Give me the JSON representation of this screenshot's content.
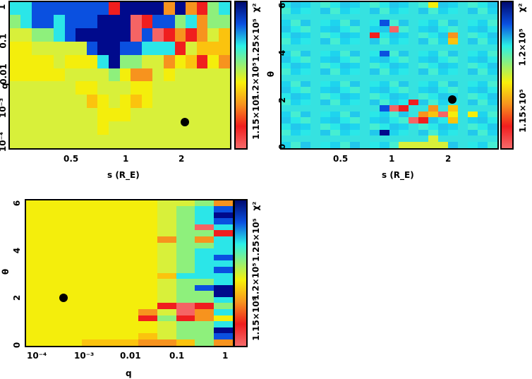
{
  "palette": [
    "#f56464",
    "#f01e1e",
    "#f7931e",
    "#fbc30e",
    "#f4ee0c",
    "#d8f03a",
    "#8ef07c",
    "#2be6e8",
    "#0a50e0",
    "#000a8c"
  ],
  "chart_data": [
    {
      "type": "heatmap",
      "xlabel": "s (R_E)",
      "ylabel": "q",
      "xticks": [
        "0.5",
        "1",
        "2"
      ],
      "yticks": [
        "1",
        "0.1",
        "0.01",
        "10⁻³",
        "10⁻⁴"
      ],
      "colorbar_label": "χ²",
      "colorbar_ticks": [
        "1.15×10⁵",
        "1.2×10⁵",
        "1.25×10⁵"
      ],
      "marker": {
        "s": 2.2,
        "q": 0.0003
      },
      "levels": [
        "77888888819999292167",
        "67887888999018867266",
        "55667899999080121253",
        "44555558998877715333",
        "44445444796655243142",
        "44444555564225455555",
        "55555544555445555555",
        "55555553454345555555",
        "55555555444555555555",
        "55555555455555555555",
        "55555555555555555555"
      ]
    },
    {
      "type": "heatmap",
      "xlabel": "s (R_E)",
      "ylabel": "θ",
      "xticks": [
        "0.5",
        "1",
        "2"
      ],
      "yticks": [
        "6",
        "4",
        "2",
        "0"
      ],
      "colorbar_label": "χ²",
      "colorbar_ticks": [
        "1.15×10⁵",
        "1.2×10⁵"
      ],
      "marker": {
        "s": 2.2,
        "theta": 2.0
      },
      "grid": {
        "cols": 22,
        "rows": 24,
        "base_level": 7
      },
      "hotspots": [
        [
          9,
          5,
          1
        ],
        [
          11,
          4,
          0
        ],
        [
          17,
          5,
          2
        ],
        [
          17,
          6,
          3
        ],
        [
          10,
          3,
          8
        ],
        [
          10,
          8,
          8
        ],
        [
          10,
          17,
          8
        ],
        [
          11,
          17,
          0
        ],
        [
          12,
          17,
          1
        ],
        [
          13,
          16,
          1
        ],
        [
          14,
          18,
          2
        ],
        [
          14,
          19,
          1
        ],
        [
          13,
          19,
          0
        ],
        [
          15,
          17,
          2
        ],
        [
          15,
          18,
          3
        ],
        [
          16,
          18,
          0
        ],
        [
          17,
          17,
          3
        ],
        [
          17,
          18,
          4
        ],
        [
          17,
          19,
          3
        ],
        [
          19,
          18,
          4
        ],
        [
          10,
          21,
          9
        ],
        [
          15,
          0,
          4
        ],
        [
          12,
          23,
          5
        ],
        [
          13,
          23,
          5
        ],
        [
          14,
          23,
          5
        ],
        [
          15,
          23,
          5
        ],
        [
          16,
          23,
          5
        ],
        [
          15,
          22,
          5
        ]
      ]
    },
    {
      "type": "heatmap",
      "xlabel": "q",
      "ylabel": "θ",
      "xticks": [
        "10⁻⁴",
        "10⁻³",
        "0.01",
        "0.1",
        "1"
      ],
      "yticks": [
        "6",
        "4",
        "2",
        "0"
      ],
      "colorbar_label": "χ²",
      "colorbar_ticks": [
        "1.15×10⁵",
        "1.2×10⁵",
        "1.25×10⁵"
      ],
      "marker": {
        "q": 0.0003,
        "theta": 2.0
      },
      "levels": [
        "44444445562",
        "44444445678",
        "44444445679",
        "44444445678",
        "44444445607",
        "44444445661",
        "44444442627",
        "44444445667",
        "44444445677",
        "44444445678",
        "44444445677",
        "44444445678",
        "44444443777",
        "44444445667",
        "44444445689",
        "44444445669",
        "44444445667",
        "44444441016",
        "44444425027",
        "44444416124",
        "44444445667",
        "44444445669",
        "44444435668",
        "44433322362"
      ]
    }
  ]
}
